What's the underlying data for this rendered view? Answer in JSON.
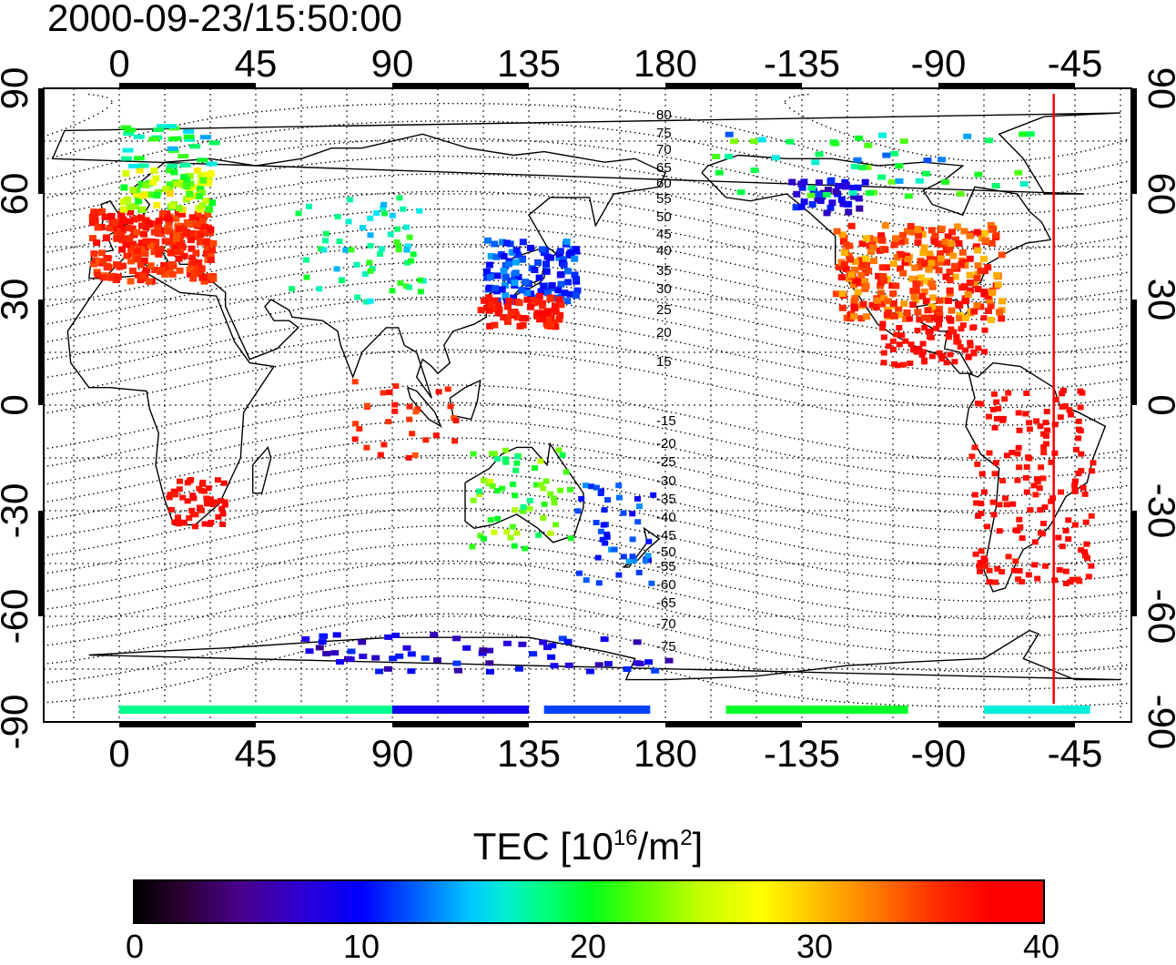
{
  "timestamp": "2000-09-23/15:50:00",
  "map": {
    "lon_ticks": [
      "0",
      "45",
      "90",
      "135",
      "180",
      "-135",
      "-90",
      "-45"
    ],
    "lat_ticks": [
      "90",
      "60",
      "30",
      "0",
      "-30",
      "-60",
      "-90"
    ],
    "contour_labels_north": [
      "80",
      "75",
      "70",
      "65",
      "60",
      "55",
      "50",
      "45",
      "40",
      "35",
      "30",
      "25",
      "20",
      "15"
    ],
    "contour_labels_south": [
      "-15",
      "-20",
      "-25",
      "-30",
      "-35",
      "-40",
      "-45",
      "-50",
      "-55",
      "-60",
      "-65",
      "-70",
      "-75"
    ],
    "marker_line_color": "#ff0000",
    "marker_line_longitude": -52
  },
  "colorbar": {
    "title": "TEC  [10",
    "title_sup1": "16",
    "title_mid": "/m",
    "title_sup2": "2",
    "title_end": "]",
    "ticks": [
      "0",
      "10",
      "20",
      "30",
      "40"
    ],
    "range": [
      0,
      40
    ]
  }
}
